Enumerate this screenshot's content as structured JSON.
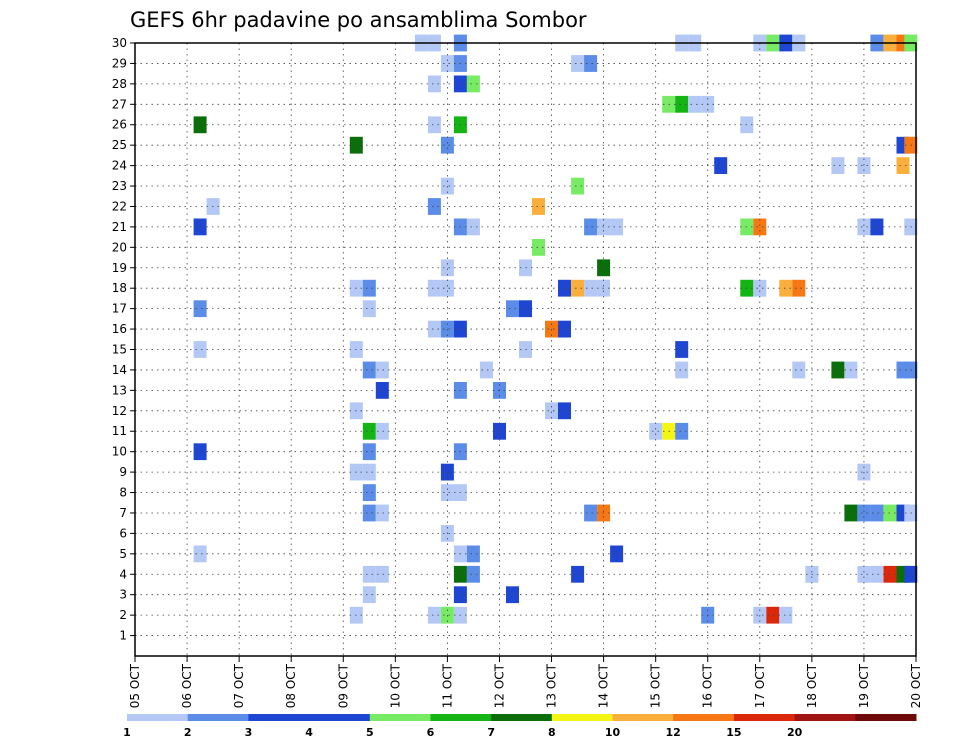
{
  "chart_data": {
    "type": "heatmap",
    "title": "GEFS 6hr padavine po ansamblima Sombor",
    "x_tick_labels": [
      "05 OCT",
      "06 OCT",
      "07 OCT",
      "08 OCT",
      "09 OCT",
      "10 OCT",
      "11 OCT",
      "12 OCT",
      "13 OCT",
      "14 OCT",
      "15 OCT",
      "16 OCT",
      "17 OCT",
      "18 OCT",
      "19 OCT",
      "20 OCT"
    ],
    "y_tick_labels": [
      "1",
      "2",
      "3",
      "4",
      "5",
      "6",
      "7",
      "8",
      "9",
      "10",
      "11",
      "12",
      "13",
      "14",
      "15",
      "16",
      "17",
      "18",
      "19",
      "20",
      "21",
      "22",
      "23",
      "24",
      "25",
      "26",
      "27",
      "28",
      "29",
      "30"
    ],
    "x_range": [
      0,
      15
    ],
    "y_range": [
      0,
      30
    ],
    "grid": true,
    "legend": {
      "position": "bottom",
      "labels": [
        "1",
        "2",
        "3",
        "4",
        "5",
        "6",
        "7",
        "8",
        "10",
        "12",
        "15",
        "20"
      ],
      "colors": [
        "#b4c8f5",
        "#5a8ce8",
        "#1e46d2",
        "#1e46d2",
        "#78eb64",
        "#14b414",
        "#0a6e0a",
        "#f5f514",
        "#faaf3c",
        "#f57814",
        "#dc280a",
        "#a01414",
        "#6e0a0a"
      ]
    },
    "color_scale": {
      "1": "#b4c8f5",
      "2": "#5a8ce8",
      "3": "#1e46d2",
      "4": "#78eb64",
      "5": "#14b414",
      "6": "#0a6e0a",
      "7": "#f5f514",
      "8": "#faaf3c",
      "9": "#f57814",
      "10": "#dc280a"
    },
    "cells": [
      {
        "member": 30,
        "day": 5.5,
        "level": 1
      },
      {
        "member": 30,
        "day": 5.75,
        "level": 1
      },
      {
        "member": 30,
        "day": 6.25,
        "level": 2
      },
      {
        "member": 30,
        "day": 10.5,
        "level": 1
      },
      {
        "member": 30,
        "day": 10.75,
        "level": 1
      },
      {
        "member": 30,
        "day": 12.0,
        "level": 1
      },
      {
        "member": 30,
        "day": 12.25,
        "level": 4
      },
      {
        "member": 30,
        "day": 12.5,
        "level": 3
      },
      {
        "member": 30,
        "day": 12.75,
        "level": 1
      },
      {
        "member": 30,
        "day": 14.25,
        "level": 2
      },
      {
        "member": 30,
        "day": 14.5,
        "level": 8
      },
      {
        "member": 30,
        "day": 14.75,
        "level": 9
      },
      {
        "member": 30,
        "day": 14.9,
        "level": 4
      },
      {
        "member": 29,
        "day": 6.0,
        "level": 1
      },
      {
        "member": 29,
        "day": 6.25,
        "level": 2
      },
      {
        "member": 29,
        "day": 8.5,
        "level": 1
      },
      {
        "member": 29,
        "day": 8.75,
        "level": 2
      },
      {
        "member": 28,
        "day": 5.75,
        "level": 1
      },
      {
        "member": 28,
        "day": 6.25,
        "level": 3
      },
      {
        "member": 28,
        "day": 6.5,
        "level": 4
      },
      {
        "member": 27,
        "day": 10.25,
        "level": 4
      },
      {
        "member": 27,
        "day": 10.5,
        "level": 5
      },
      {
        "member": 27,
        "day": 10.75,
        "level": 1
      },
      {
        "member": 27,
        "day": 11.0,
        "level": 1
      },
      {
        "member": 26,
        "day": 1.25,
        "level": 6
      },
      {
        "member": 26,
        "day": 5.75,
        "level": 1
      },
      {
        "member": 26,
        "day": 6.25,
        "level": 5
      },
      {
        "member": 26,
        "day": 11.75,
        "level": 1
      },
      {
        "member": 25,
        "day": 4.25,
        "level": 6
      },
      {
        "member": 25,
        "day": 6.0,
        "level": 2
      },
      {
        "member": 25,
        "day": 14.75,
        "level": 3
      },
      {
        "member": 25,
        "day": 14.9,
        "level": 9
      },
      {
        "member": 24,
        "day": 11.25,
        "level": 3
      },
      {
        "member": 24,
        "day": 13.5,
        "level": 1
      },
      {
        "member": 24,
        "day": 14.0,
        "level": 1
      },
      {
        "member": 24,
        "day": 14.75,
        "level": 8
      },
      {
        "member": 23,
        "day": 6.0,
        "level": 1
      },
      {
        "member": 23,
        "day": 8.5,
        "level": 4
      },
      {
        "member": 22,
        "day": 1.5,
        "level": 1
      },
      {
        "member": 22,
        "day": 5.75,
        "level": 2
      },
      {
        "member": 22,
        "day": 7.75,
        "level": 8
      },
      {
        "member": 21,
        "day": 1.25,
        "level": 3
      },
      {
        "member": 21,
        "day": 6.25,
        "level": 2
      },
      {
        "member": 21,
        "day": 6.5,
        "level": 1
      },
      {
        "member": 21,
        "day": 8.75,
        "level": 2
      },
      {
        "member": 21,
        "day": 9.0,
        "level": 1
      },
      {
        "member": 21,
        "day": 9.25,
        "level": 1
      },
      {
        "member": 21,
        "day": 11.75,
        "level": 4
      },
      {
        "member": 21,
        "day": 12.0,
        "level": 9
      },
      {
        "member": 21,
        "day": 14.0,
        "level": 1
      },
      {
        "member": 21,
        "day": 14.25,
        "level": 3
      },
      {
        "member": 21,
        "day": 14.9,
        "level": 1
      },
      {
        "member": 20,
        "day": 7.75,
        "level": 4
      },
      {
        "member": 19,
        "day": 6.0,
        "level": 1
      },
      {
        "member": 19,
        "day": 7.5,
        "level": 1
      },
      {
        "member": 19,
        "day": 9.0,
        "level": 6
      },
      {
        "member": 18,
        "day": 4.25,
        "level": 1
      },
      {
        "member": 18,
        "day": 4.5,
        "level": 2
      },
      {
        "member": 18,
        "day": 5.75,
        "level": 1
      },
      {
        "member": 18,
        "day": 6.0,
        "level": 1
      },
      {
        "member": 18,
        "day": 8.25,
        "level": 3
      },
      {
        "member": 18,
        "day": 8.5,
        "level": 8
      },
      {
        "member": 18,
        "day": 8.75,
        "level": 1
      },
      {
        "member": 18,
        "day": 9.0,
        "level": 1
      },
      {
        "member": 18,
        "day": 11.75,
        "level": 5
      },
      {
        "member": 18,
        "day": 12.0,
        "level": 1
      },
      {
        "member": 18,
        "day": 12.5,
        "level": 8
      },
      {
        "member": 18,
        "day": 12.75,
        "level": 9
      },
      {
        "member": 17,
        "day": 1.25,
        "level": 2
      },
      {
        "member": 17,
        "day": 4.5,
        "level": 1
      },
      {
        "member": 17,
        "day": 7.25,
        "level": 2
      },
      {
        "member": 17,
        "day": 7.5,
        "level": 3
      },
      {
        "member": 16,
        "day": 5.75,
        "level": 1
      },
      {
        "member": 16,
        "day": 6.0,
        "level": 2
      },
      {
        "member": 16,
        "day": 6.25,
        "level": 3
      },
      {
        "member": 16,
        "day": 8.0,
        "level": 9
      },
      {
        "member": 16,
        "day": 8.25,
        "level": 3
      },
      {
        "member": 15,
        "day": 1.25,
        "level": 1
      },
      {
        "member": 15,
        "day": 4.25,
        "level": 1
      },
      {
        "member": 15,
        "day": 7.5,
        "level": 1
      },
      {
        "member": 15,
        "day": 10.5,
        "level": 3
      },
      {
        "member": 14,
        "day": 4.5,
        "level": 2
      },
      {
        "member": 14,
        "day": 4.75,
        "level": 1
      },
      {
        "member": 14,
        "day": 6.75,
        "level": 1
      },
      {
        "member": 14,
        "day": 10.5,
        "level": 1
      },
      {
        "member": 14,
        "day": 12.75,
        "level": 1
      },
      {
        "member": 14,
        "day": 13.5,
        "level": 6
      },
      {
        "member": 14,
        "day": 13.75,
        "level": 1
      },
      {
        "member": 14,
        "day": 14.75,
        "level": 2
      },
      {
        "member": 14,
        "day": 14.9,
        "level": 2
      },
      {
        "member": 13,
        "day": 4.75,
        "level": 3
      },
      {
        "member": 13,
        "day": 6.25,
        "level": 2
      },
      {
        "member": 13,
        "day": 7.0,
        "level": 2
      },
      {
        "member": 12,
        "day": 4.25,
        "level": 1
      },
      {
        "member": 12,
        "day": 8.0,
        "level": 1
      },
      {
        "member": 12,
        "day": 8.25,
        "level": 3
      },
      {
        "member": 11,
        "day": 4.5,
        "level": 5
      },
      {
        "member": 11,
        "day": 4.75,
        "level": 1
      },
      {
        "member": 11,
        "day": 7.0,
        "level": 3
      },
      {
        "member": 11,
        "day": 10.0,
        "level": 1
      },
      {
        "member": 11,
        "day": 10.25,
        "level": 7
      },
      {
        "member": 11,
        "day": 10.5,
        "level": 2
      },
      {
        "member": 10,
        "day": 1.25,
        "level": 3
      },
      {
        "member": 10,
        "day": 4.5,
        "level": 2
      },
      {
        "member": 10,
        "day": 6.25,
        "level": 2
      },
      {
        "member": 9,
        "day": 4.25,
        "level": 1
      },
      {
        "member": 9,
        "day": 4.5,
        "level": 1
      },
      {
        "member": 9,
        "day": 6.0,
        "level": 3
      },
      {
        "member": 9,
        "day": 14.0,
        "level": 1
      },
      {
        "member": 8,
        "day": 4.5,
        "level": 2
      },
      {
        "member": 8,
        "day": 6.0,
        "level": 1
      },
      {
        "member": 8,
        "day": 6.25,
        "level": 1
      },
      {
        "member": 7,
        "day": 4.5,
        "level": 2
      },
      {
        "member": 7,
        "day": 4.75,
        "level": 1
      },
      {
        "member": 7,
        "day": 8.75,
        "level": 2
      },
      {
        "member": 7,
        "day": 9.0,
        "level": 9
      },
      {
        "member": 7,
        "day": 13.75,
        "level": 6
      },
      {
        "member": 7,
        "day": 14.0,
        "level": 2
      },
      {
        "member": 7,
        "day": 14.25,
        "level": 2
      },
      {
        "member": 7,
        "day": 14.5,
        "level": 4
      },
      {
        "member": 7,
        "day": 14.75,
        "level": 3
      },
      {
        "member": 7,
        "day": 14.9,
        "level": 1
      },
      {
        "member": 6,
        "day": 6.0,
        "level": 1
      },
      {
        "member": 5,
        "day": 1.25,
        "level": 1
      },
      {
        "member": 5,
        "day": 6.25,
        "level": 1
      },
      {
        "member": 5,
        "day": 6.5,
        "level": 2
      },
      {
        "member": 5,
        "day": 9.25,
        "level": 3
      },
      {
        "member": 4,
        "day": 4.5,
        "level": 1
      },
      {
        "member": 4,
        "day": 4.75,
        "level": 1
      },
      {
        "member": 4,
        "day": 6.25,
        "level": 6
      },
      {
        "member": 4,
        "day": 6.5,
        "level": 2
      },
      {
        "member": 4,
        "day": 8.5,
        "level": 3
      },
      {
        "member": 4,
        "day": 13.0,
        "level": 1
      },
      {
        "member": 4,
        "day": 14.0,
        "level": 1
      },
      {
        "member": 4,
        "day": 14.25,
        "level": 1
      },
      {
        "member": 4,
        "day": 14.5,
        "level": 10
      },
      {
        "member": 4,
        "day": 14.75,
        "level": 6
      },
      {
        "member": 4,
        "day": 14.9,
        "level": 3
      },
      {
        "member": 3,
        "day": 4.5,
        "level": 1
      },
      {
        "member": 3,
        "day": 6.25,
        "level": 3
      },
      {
        "member": 3,
        "day": 7.25,
        "level": 3
      },
      {
        "member": 2,
        "day": 4.25,
        "level": 1
      },
      {
        "member": 2,
        "day": 5.75,
        "level": 1
      },
      {
        "member": 2,
        "day": 6.0,
        "level": 4
      },
      {
        "member": 2,
        "day": 6.25,
        "level": 1
      },
      {
        "member": 2,
        "day": 11.0,
        "level": 2
      },
      {
        "member": 2,
        "day": 12.0,
        "level": 1
      },
      {
        "member": 2,
        "day": 12.25,
        "level": 10
      },
      {
        "member": 2,
        "day": 12.5,
        "level": 1
      }
    ]
  }
}
